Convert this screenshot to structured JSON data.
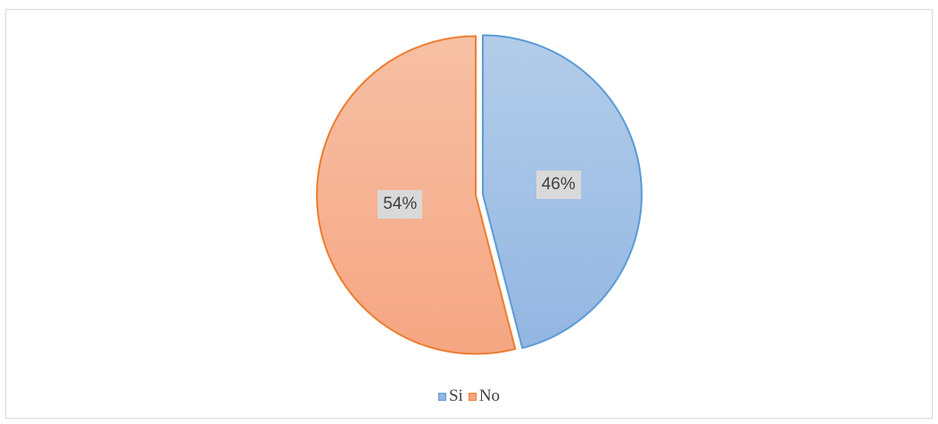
{
  "chart_data": {
    "type": "pie",
    "title": "",
    "slices": [
      {
        "label": "Si",
        "value": 46,
        "data_label": "46%",
        "fill_top": "#b3cde9",
        "fill_bottom": "#93b6e2",
        "stroke": "#5b9bd5"
      },
      {
        "label": "No",
        "value": 54,
        "data_label": "54%",
        "fill_top": "#f7c0a5",
        "fill_bottom": "#f5a682",
        "stroke": "#ed7d31"
      }
    ],
    "start_angle_deg": 0,
    "direction": "clockwise",
    "exploded": true,
    "legend_position": "bottom"
  }
}
